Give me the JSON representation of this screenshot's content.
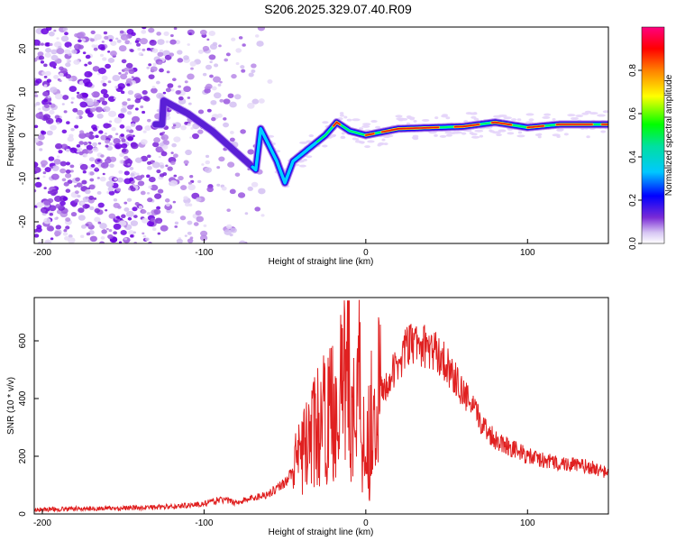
{
  "title": "S206.2025.329.07.40.R09",
  "chart_data": [
    {
      "type": "heatmap",
      "xlabel": "Height of straight line (km)",
      "ylabel": "Frequency (Hz)",
      "xlim": [
        -205,
        150
      ],
      "ylim": [
        -25,
        25
      ],
      "xticks": [
        -200,
        -100,
        0,
        100
      ],
      "yticks": [
        -20,
        -10,
        0,
        10,
        20
      ],
      "colorbar": {
        "label": "Normalized spectral amplitude",
        "range": [
          0,
          1
        ],
        "ticks": [
          "0.0",
          "0.2",
          "0.4",
          "0.6",
          "0.8"
        ]
      },
      "ridge": [
        {
          "x": -125,
          "f": 8
        },
        {
          "x": -110,
          "f": 5
        },
        {
          "x": -95,
          "f": 1
        },
        {
          "x": -80,
          "f": -4
        },
        {
          "x": -68,
          "f": -8
        },
        {
          "x": -65,
          "f": 1.5
        },
        {
          "x": -55,
          "f": -6
        },
        {
          "x": -50,
          "f": -11
        },
        {
          "x": -45,
          "f": -6
        },
        {
          "x": -35,
          "f": -3
        },
        {
          "x": -25,
          "f": 0
        },
        {
          "x": -18,
          "f": 3
        },
        {
          "x": -10,
          "f": 1
        },
        {
          "x": 0,
          "f": 0
        },
        {
          "x": 20,
          "f": 1.5
        },
        {
          "x": 60,
          "f": 2
        },
        {
          "x": 80,
          "f": 3
        },
        {
          "x": 100,
          "f": 1.8
        },
        {
          "x": 120,
          "f": 2.5
        },
        {
          "x": 150,
          "f": 2.5
        }
      ]
    },
    {
      "type": "line",
      "xlabel": "Height of straight line (km)",
      "ylabel": "SNR (10 * v/v)",
      "xlim": [
        -205,
        150
      ],
      "ylim": [
        0,
        750
      ],
      "xticks": [
        -200,
        -100,
        0,
        100
      ],
      "yticks": [
        0,
        200,
        400,
        600
      ],
      "color": "#e02020",
      "series": [
        {
          "name": "SNR",
          "x": [
            -205,
            -180,
            -150,
            -120,
            -100,
            -90,
            -80,
            -70,
            -60,
            -50,
            -45,
            -40,
            -35,
            -30,
            -25,
            -20,
            -15,
            -12,
            -10,
            -8,
            -5,
            -2,
            0,
            5,
            10,
            15,
            20,
            25,
            30,
            35,
            40,
            45,
            50,
            55,
            60,
            65,
            70,
            75,
            80,
            90,
            100,
            110,
            120,
            130,
            140,
            150
          ],
          "y": [
            15,
            18,
            20,
            25,
            35,
            50,
            40,
            55,
            70,
            110,
            150,
            200,
            260,
            300,
            330,
            360,
            420,
            450,
            380,
            300,
            500,
            350,
            200,
            390,
            420,
            470,
            520,
            580,
            590,
            585,
            570,
            555,
            520,
            470,
            420,
            380,
            330,
            290,
            260,
            230,
            200,
            185,
            175,
            170,
            160,
            140
          ]
        }
      ]
    }
  ]
}
